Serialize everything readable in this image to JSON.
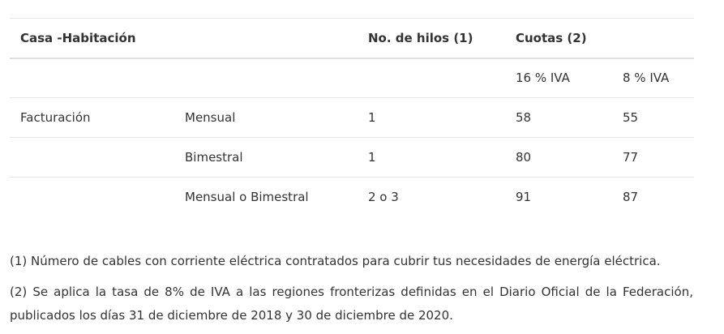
{
  "table": {
    "headers": {
      "col1": "Casa -Habitación",
      "col2": "",
      "col3": "No. de hilos (1)",
      "col4": "Cuotas (2)",
      "col5": ""
    },
    "subheaders": {
      "iva16": "16 % IVA",
      "iva8": "8 % IVA"
    },
    "rows": [
      {
        "category": "Facturación",
        "period": "Mensual",
        "hilos": "1",
        "iva16": "58",
        "iva8": "55"
      },
      {
        "category": "",
        "period": "Bimestral",
        "hilos": "1",
        "iva16": "80",
        "iva8": "77"
      },
      {
        "category": "",
        "period": "Mensual o Bimestral",
        "hilos": "2 o 3",
        "iva16": "91",
        "iva8": "87"
      }
    ]
  },
  "notes": {
    "note1": "(1) Número de cables con corriente eléctrica contratados para cubrir tus necesidades de energía eléctrica.",
    "note2": "(2) Se aplica la tasa de 8% de IVA a las regiones fronterizas definidas en el Diario Oficial de la Federación, publicados los días 31 de diciembre de 2018 y 30 de diciembre de 2020."
  }
}
